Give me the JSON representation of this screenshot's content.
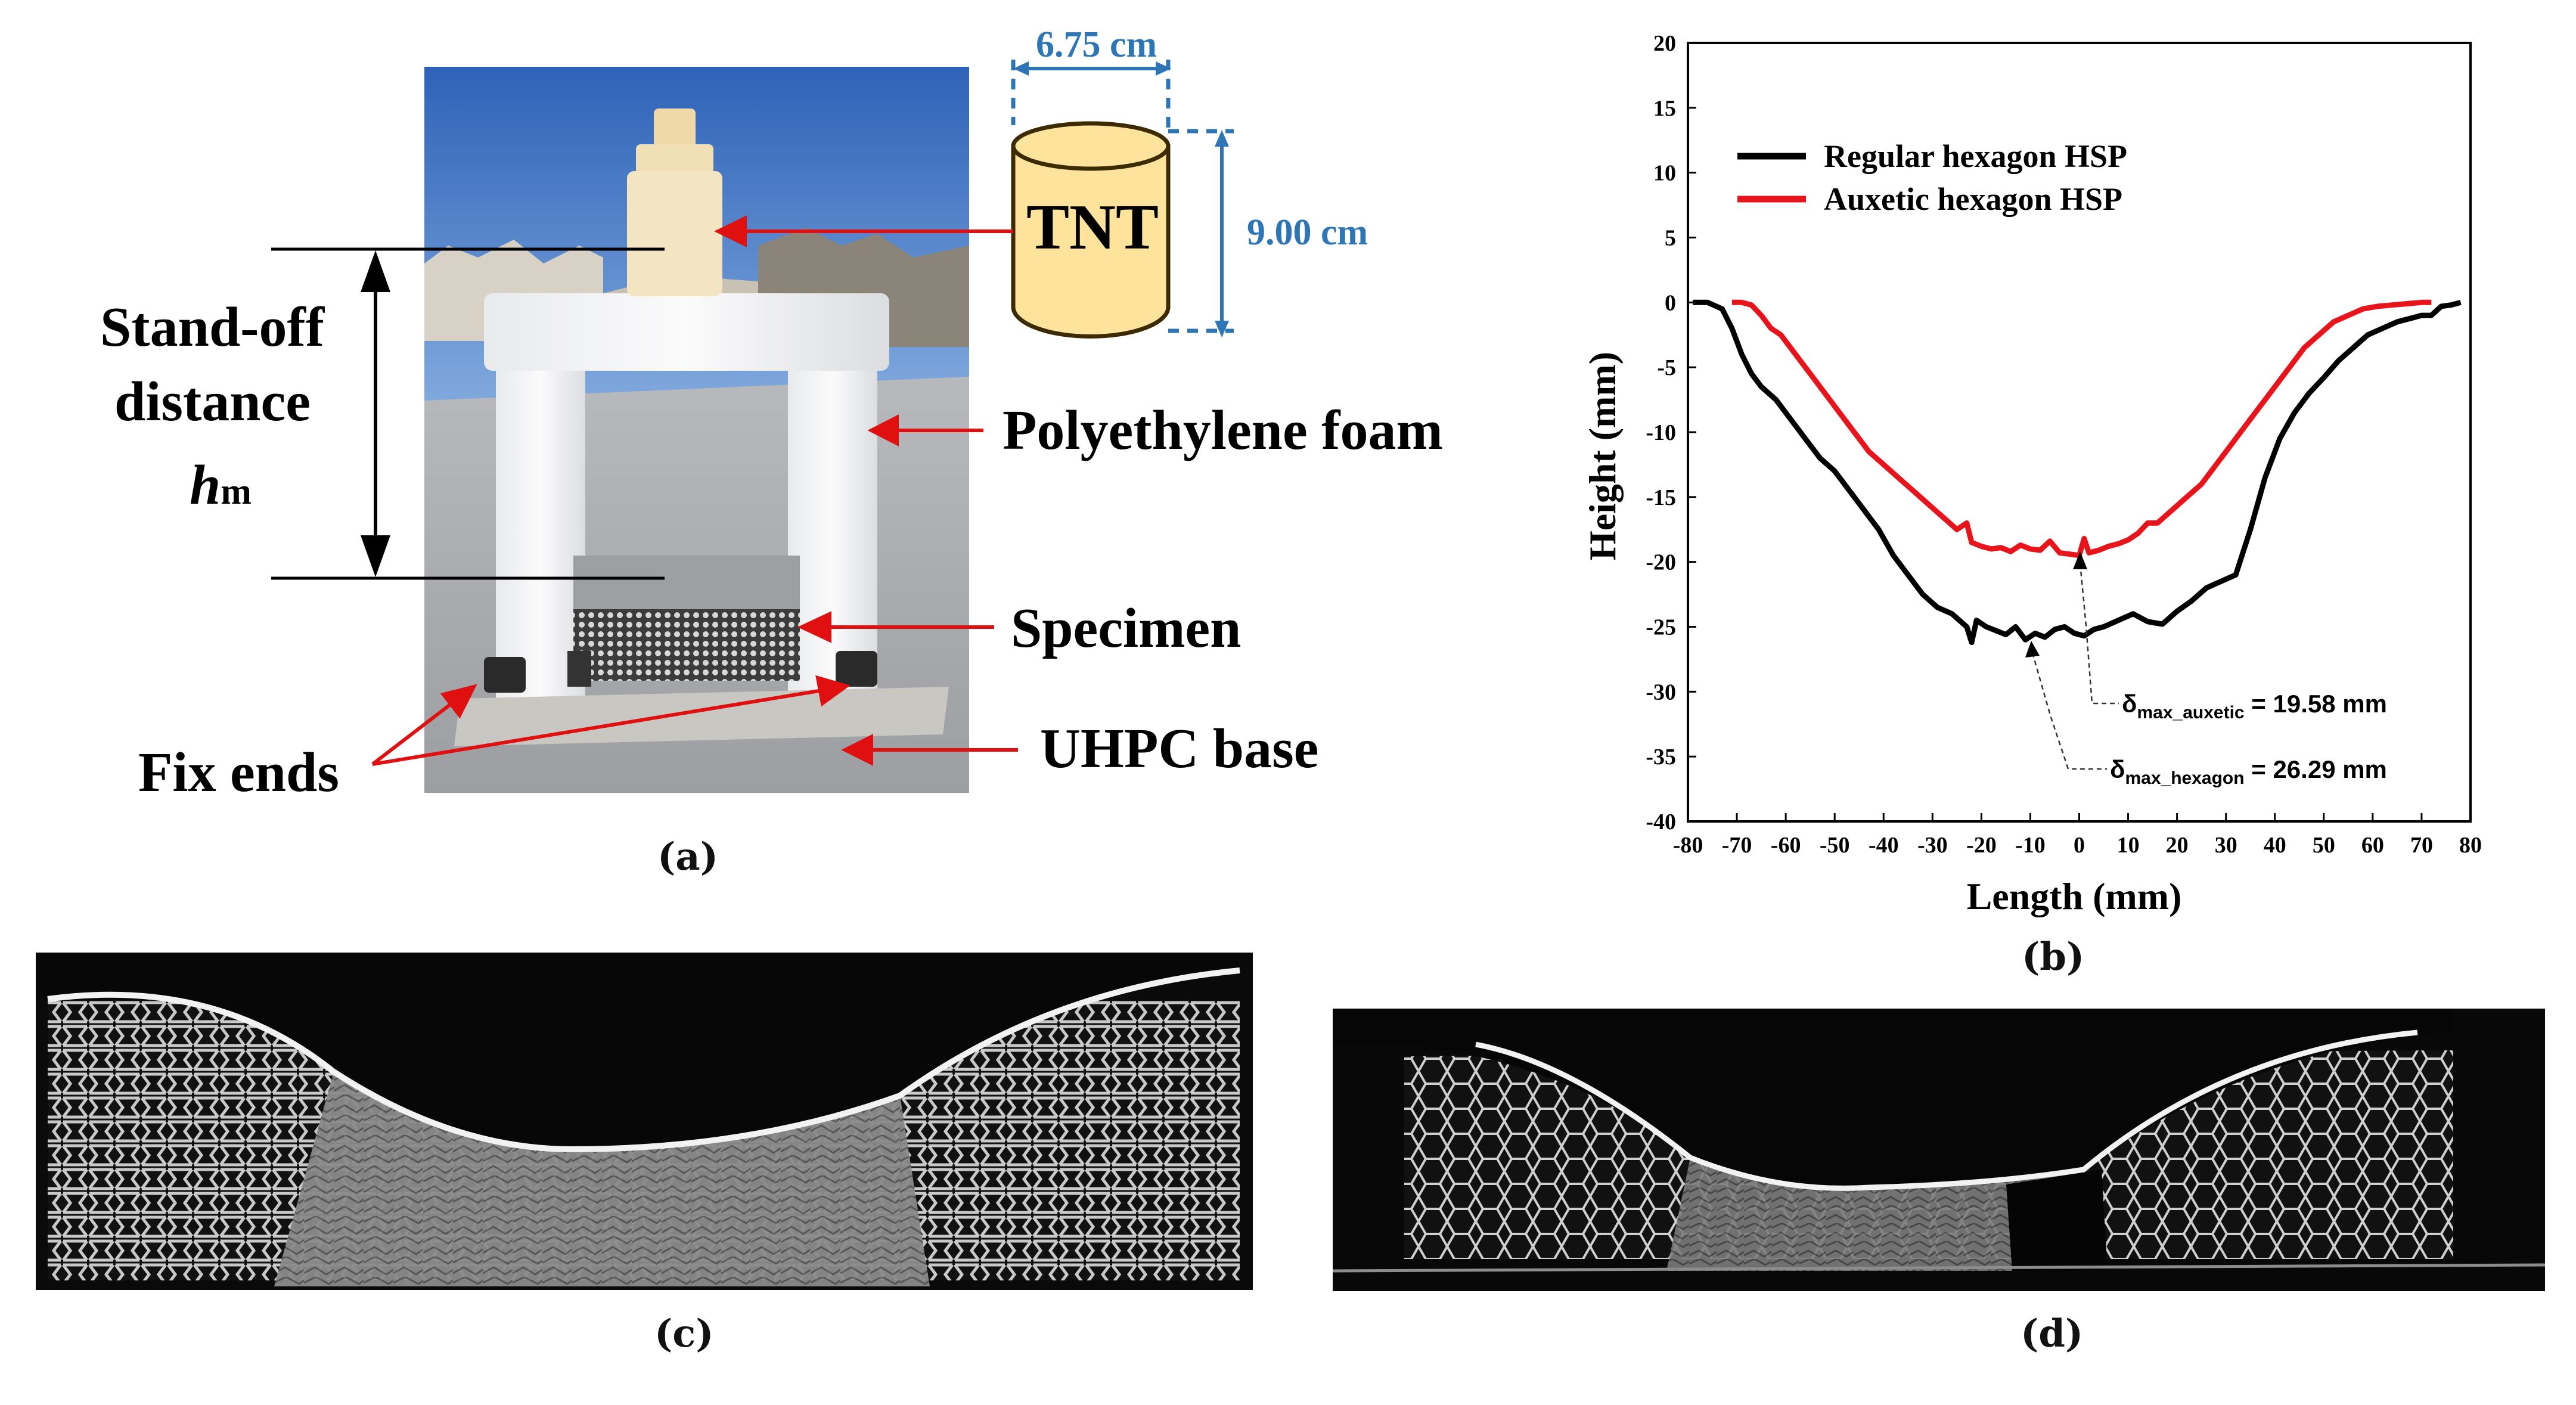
{
  "panel_a": {
    "caption": "(a)",
    "labels": {
      "diameter": "6.75 cm",
      "height": "9.00 cm",
      "charge": "TNT",
      "standoff_line1": "Stand-off",
      "standoff_line2": "distance",
      "standoff_symbol": "h",
      "standoff_sub": "m",
      "foam": "Polyethylene foam",
      "specimen": "Specimen",
      "fix_ends": "Fix ends",
      "base": "UHPC base"
    },
    "colors": {
      "dimension": "#2e75b6",
      "arrow": "#e01010",
      "cylinder": "#fde39b"
    }
  },
  "panel_b": {
    "caption": "(b)",
    "annotations": {
      "auxetic_prefix": "δ",
      "auxetic_sub": "max_auxetic",
      "auxetic_value": " = 19.58 mm",
      "hexagon_prefix": "δ",
      "hexagon_sub": "max_hexagon",
      "hexagon_value": " = 26.29 mm"
    }
  },
  "panel_c": {
    "caption": "(c)"
  },
  "panel_d": {
    "caption": "(d)"
  },
  "chart_data": {
    "type": "line",
    "xlabel": "Length (mm)",
    "ylabel": "Height (mm)",
    "xlim": [
      -80,
      80
    ],
    "ylim": [
      -40,
      20
    ],
    "xticks": [
      -80,
      -70,
      -60,
      -50,
      -40,
      -30,
      -20,
      -10,
      0,
      10,
      20,
      30,
      40,
      50,
      60,
      70,
      80
    ],
    "yticks": [
      20,
      15,
      10,
      5,
      0,
      -5,
      -10,
      -15,
      -20,
      -25,
      -30,
      -35,
      -40
    ],
    "grid": false,
    "legend_position": "top-left",
    "series": [
      {
        "name": "Regular hexagon HSP",
        "color": "#000000",
        "x": [
          -79,
          -76,
          -73,
          -71,
          -69,
          -67,
          -65,
          -62,
          -59,
          -56,
          -53,
          -50,
          -47,
          -44,
          -41,
          -38,
          -35,
          -32,
          -29,
          -26,
          -23,
          -22,
          -21,
          -19,
          -17,
          -15,
          -13,
          -11,
          -9,
          -7,
          -5,
          -3,
          -1,
          1,
          3,
          5,
          8,
          11,
          14,
          17,
          20,
          23,
          26,
          29,
          32,
          35,
          38,
          41,
          44,
          47,
          50,
          53,
          56,
          59,
          62,
          65,
          68,
          70,
          72,
          74,
          76,
          78
        ],
        "y": [
          0,
          0,
          -0.5,
          -2,
          -4,
          -5.5,
          -6.5,
          -7.5,
          -9,
          -10.5,
          -12,
          -13,
          -14.5,
          -16,
          -17.5,
          -19.5,
          -21,
          -22.5,
          -23.5,
          -24,
          -25,
          -26.2,
          -24.5,
          -25,
          -25.3,
          -25.6,
          -25,
          -26,
          -25.5,
          -25.8,
          -25.2,
          -25,
          -25.5,
          -25.7,
          -25.2,
          -25,
          -24.5,
          -24,
          -24.6,
          -24.8,
          -23.8,
          -23,
          -22,
          -21.5,
          -21,
          -17.5,
          -13.5,
          -10.5,
          -8.5,
          -7,
          -5.8,
          -4.5,
          -3.5,
          -2.5,
          -2,
          -1.5,
          -1.2,
          -1,
          -1,
          -0.3,
          -0.2,
          0
        ]
      },
      {
        "name": "Auxetic hexagon HSP",
        "color": "#e8141c",
        "x": [
          -71,
          -69,
          -67,
          -65,
          -63,
          -61,
          -59,
          -57,
          -55,
          -52,
          -49,
          -46,
          -43,
          -40,
          -37,
          -34,
          -31,
          -28,
          -25,
          -23,
          -22,
          -20,
          -18,
          -16,
          -14,
          -12,
          -10,
          -8,
          -6,
          -4,
          -2,
          0,
          1,
          2,
          4,
          6,
          8,
          10,
          12,
          14,
          16,
          19,
          22,
          25,
          28,
          31,
          34,
          37,
          40,
          43,
          46,
          49,
          52,
          55,
          58,
          61,
          64,
          67,
          70,
          72
        ],
        "y": [
          0,
          0,
          -0.2,
          -1,
          -2,
          -2.5,
          -3.5,
          -4.5,
          -5.5,
          -7,
          -8.5,
          -10,
          -11.5,
          -12.5,
          -13.5,
          -14.5,
          -15.5,
          -16.5,
          -17.5,
          -17,
          -18.5,
          -18.8,
          -19,
          -18.9,
          -19.2,
          -18.7,
          -19,
          -19.1,
          -18.4,
          -19.3,
          -19.4,
          -19.5,
          -18.2,
          -19.3,
          -19.1,
          -18.8,
          -18.6,
          -18.3,
          -17.8,
          -17,
          -17,
          -16,
          -15,
          -14,
          -12.5,
          -11,
          -9.5,
          -8,
          -6.5,
          -5,
          -3.5,
          -2.5,
          -1.5,
          -1,
          -0.5,
          -0.3,
          -0.2,
          -0.1,
          0,
          0
        ]
      }
    ]
  }
}
